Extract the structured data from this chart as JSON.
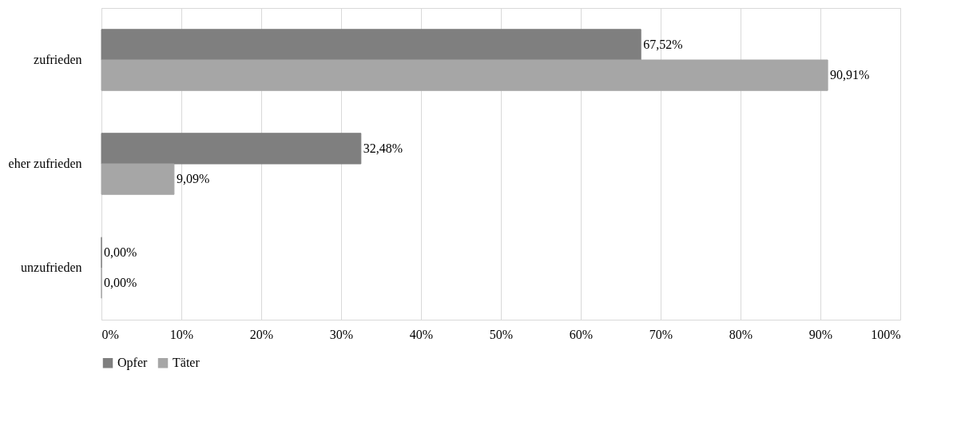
{
  "chart_data": {
    "type": "bar",
    "orientation": "horizontal",
    "categories": [
      "zufrieden",
      "eher zufrieden",
      "unzufrieden"
    ],
    "series": [
      {
        "name": "Opfer",
        "color": "#7f7f7f",
        "values": [
          67.52,
          32.48,
          0
        ],
        "value_labels": [
          "67,52%",
          "32,48%",
          "0,00%"
        ]
      },
      {
        "name": "Täter",
        "color": "#a6a6a6",
        "values": [
          90.91,
          9.09,
          0
        ],
        "value_labels": [
          "90,91%",
          "9,09%",
          "0,00%"
        ]
      }
    ],
    "xlim": [
      0,
      100
    ],
    "xticks": [
      {
        "value": 0,
        "label": "0%"
      },
      {
        "value": 10,
        "label": "10%"
      },
      {
        "value": 20,
        "label": "20%"
      },
      {
        "value": 30,
        "label": "30%"
      },
      {
        "value": 40,
        "label": "40%"
      },
      {
        "value": 50,
        "label": "50%"
      },
      {
        "value": 60,
        "label": "60%"
      },
      {
        "value": 70,
        "label": "70%"
      },
      {
        "value": 80,
        "label": "80%"
      },
      {
        "value": 90,
        "label": "90%"
      },
      {
        "value": 100,
        "label": "100%"
      }
    ],
    "grid": "x",
    "legend": "bottom"
  }
}
